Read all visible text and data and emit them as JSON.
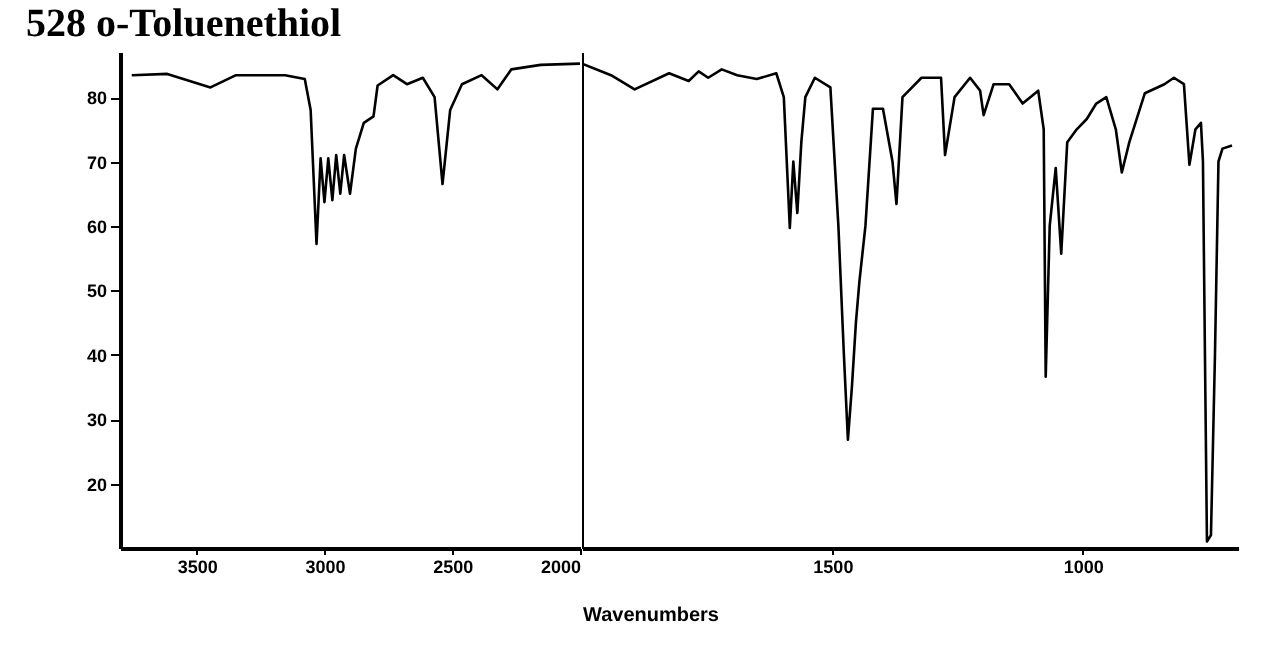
{
  "chart_data": [
    {
      "type": "line",
      "title": "528     o-Toluenethiol",
      "xlim": [
        3800,
        2000
      ],
      "xticks": [
        3500,
        3000,
        2500,
        2000
      ],
      "ylim": [
        10,
        87
      ],
      "yticks": [
        20,
        30,
        40,
        50,
        60,
        70,
        80
      ],
      "series": [
        {
          "color": "#000000",
          "x": [
            3754,
            3615,
            3446,
            3346,
            3154,
            3077,
            3054,
            3031,
            3015,
            3000,
            2985,
            2969,
            2954,
            2938,
            2923,
            2900,
            2877,
            2846,
            2808,
            2792,
            2731,
            2677,
            2615,
            2569,
            2538,
            2508,
            2462,
            2385,
            2323,
            2269,
            2154,
            2000
          ],
          "values": [
            83.4,
            83.6,
            81.5,
            83.4,
            83.4,
            82.8,
            78,
            57.2,
            70.5,
            63.7,
            70.5,
            64,
            71,
            65,
            71,
            65,
            72,
            76,
            77,
            81.8,
            83.4,
            82,
            83,
            80,
            66.5,
            78,
            82,
            83.4,
            81.2,
            84.3,
            85,
            85.2
          ]
        }
      ]
    },
    {
      "type": "line",
      "xlabel": "Wavenumbers",
      "xlim": [
        2000,
        690
      ],
      "xticks": [
        1500,
        1000
      ],
      "ylim": [
        10,
        87
      ],
      "tick_labels": "x",
      "series": [
        {
          "color": "#000000",
          "x": [
            2000,
            1942,
            1895,
            1826,
            1787,
            1767,
            1748,
            1721,
            1690,
            1651,
            1612,
            1597,
            1585,
            1578,
            1570,
            1562,
            1554,
            1535,
            1504,
            1488,
            1477,
            1469,
            1461,
            1453,
            1446,
            1434,
            1419,
            1399,
            1380,
            1372,
            1360,
            1322,
            1283,
            1275,
            1256,
            1225,
            1205,
            1198,
            1178,
            1147,
            1120,
            1089,
            1078,
            1074,
            1066,
            1054,
            1043,
            1031,
            1012,
            992,
            973,
            953,
            934,
            922,
            907,
            876,
            837,
            818,
            798,
            787,
            775,
            764,
            760,
            756,
            752,
            744,
            736,
            729,
            721,
            702
          ],
          "values": [
            85.2,
            83.4,
            81.2,
            83.7,
            82.5,
            84,
            83,
            84.3,
            83.4,
            82.8,
            83.7,
            80,
            59.7,
            70,
            62,
            73,
            80,
            83,
            81.5,
            60,
            40,
            26.8,
            35,
            45,
            51.4,
            60,
            78.2,
            78.2,
            70,
            63.4,
            80,
            83,
            83,
            71,
            80,
            83,
            81,
            77.2,
            82,
            82,
            79,
            81,
            75,
            36.6,
            60,
            69,
            55.7,
            73,
            75,
            76.6,
            79,
            80,
            75,
            68.3,
            73,
            80.6,
            82,
            83,
            82,
            69.5,
            75,
            76,
            70,
            40,
            11,
            12,
            40,
            70,
            72,
            72.5
          ]
        }
      ]
    }
  ]
}
